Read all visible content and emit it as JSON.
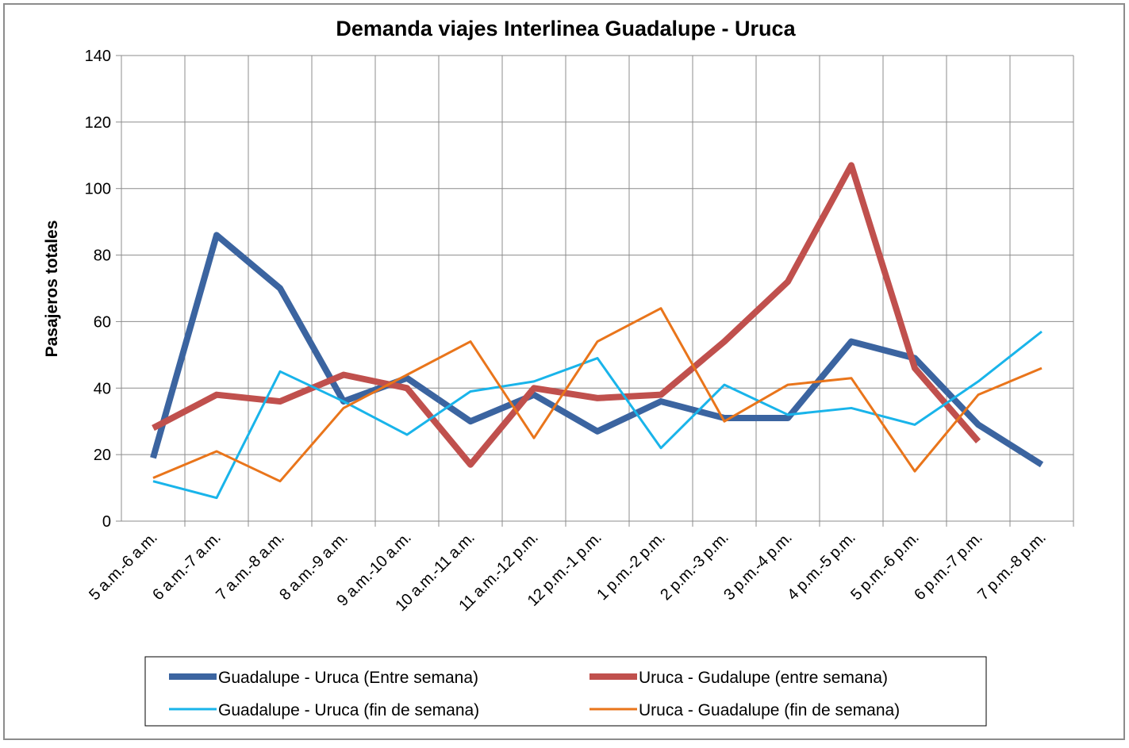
{
  "chart_data": {
    "type": "line",
    "title": "Demanda viajes Interlinea Guadalupe - Uruca",
    "y_label": "Pasajeros totales",
    "categories": [
      "5 a.m.-6 a.m.",
      "6 a.m.-7 a.m.",
      "7 a.m.-8 a.m.",
      "8 a.m.-9 a.m.",
      "9 a.m.-10 a.m.",
      "10 a.m.-11 a.m.",
      "11 a.m.-12 p.m.",
      "12 p.m.-1 p.m.",
      "1 p.m.-2 p.m.",
      "2 p.m.-3 p.m.",
      "3 p.m.-4 p.m.",
      "4 p.m.-5 p.m.",
      "5 p.m.-6 p.m.",
      "6 p.m.-7 p.m.",
      "7 p.m.-8 p.m."
    ],
    "series": [
      {
        "name": "Guadalupe - Uruca (Entre semana)",
        "color": "#3b64a0",
        "line_width": 8,
        "values": [
          19,
          86,
          70,
          36,
          43,
          30,
          38,
          27,
          36,
          31,
          31,
          54,
          49,
          29,
          17
        ]
      },
      {
        "name": "Uruca - Gudalupe (entre semana)",
        "color": "#c0504d",
        "line_width": 8,
        "values": [
          28,
          38,
          36,
          44,
          40,
          17,
          40,
          37,
          38,
          54,
          72,
          107,
          46,
          24,
          null
        ]
      },
      {
        "name": "Guadalupe - Uruca (fin de semana)",
        "color": "#19b4ea",
        "line_width": 3,
        "values": [
          12,
          7,
          45,
          36,
          26,
          39,
          42,
          49,
          22,
          41,
          32,
          34,
          29,
          42,
          57
        ]
      },
      {
        "name": "Uruca - Guadalupe (fin de semana)",
        "color": "#e9751b",
        "line_width": 3,
        "values": [
          13,
          21,
          12,
          34,
          44,
          54,
          25,
          54,
          64,
          30,
          41,
          43,
          15,
          38,
          46
        ]
      }
    ],
    "ylim": [
      0,
      140
    ],
    "yticks": [
      0,
      20,
      40,
      60,
      80,
      100,
      120,
      140
    ],
    "grid": true,
    "legend": "bottom"
  }
}
